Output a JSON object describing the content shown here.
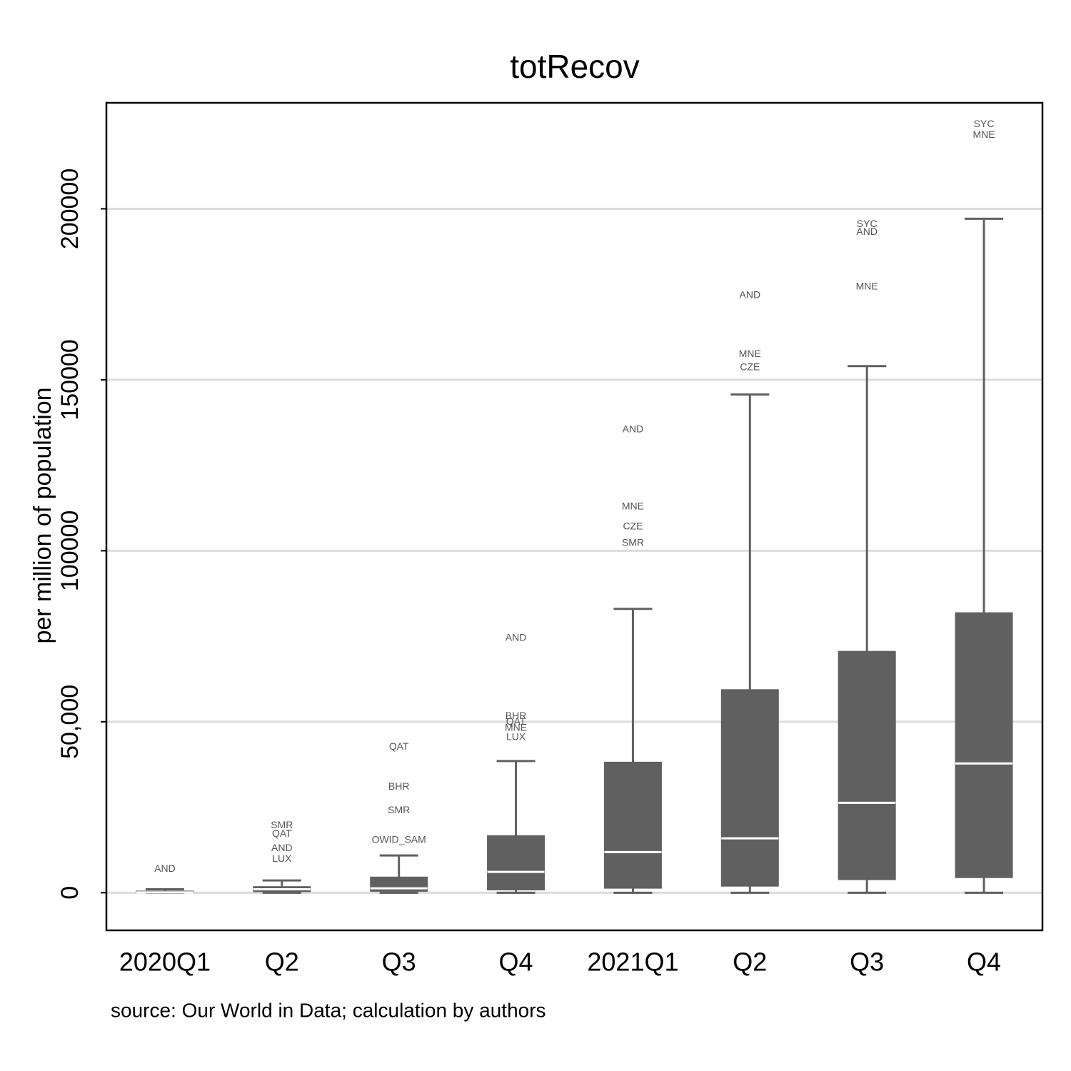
{
  "chart_data": {
    "type": "box",
    "title": "totRecov",
    "y_label": "per million of population",
    "source": "source: Our World in Data; calculation by authors",
    "categories": [
      "2020Q1",
      "Q2",
      "Q3",
      "Q4",
      "2021Q1",
      "Q2",
      "Q3",
      "Q4"
    ],
    "color": "#606060",
    "median_color": "#ffffff",
    "grid": true,
    "ylim": [
      -11000,
      231000
    ],
    "yticks": [
      0,
      {
        "value": 50000,
        "label": "50,000"
      },
      100000,
      150000,
      200000
    ],
    "boxes": [
      {
        "whisker_low": 0,
        "q1": 0,
        "median": 100,
        "q3": 500,
        "whisker_high": 1000,
        "outliers": [
          {
            "label": "AND",
            "value": 6900
          }
        ]
      },
      {
        "whisker_low": 0,
        "q1": 300,
        "median": 1000,
        "q3": 1800,
        "whisker_high": 3600,
        "outliers": [
          {
            "label": "SMR",
            "value": 19600
          },
          {
            "label": "QAT",
            "value": 17100
          },
          {
            "label": "AND",
            "value": 13000
          },
          {
            "label": "LUX",
            "value": 9800
          }
        ]
      },
      {
        "whisker_low": 0,
        "q1": 400,
        "median": 1300,
        "q3": 4600,
        "whisker_high": 10900,
        "outliers": [
          {
            "label": "QAT",
            "value": 42600
          },
          {
            "label": "BHR",
            "value": 30900
          },
          {
            "label": "SMR",
            "value": 24000
          },
          {
            "label": "OWID_SAM",
            "value": 15300
          }
        ]
      },
      {
        "whisker_low": 0,
        "q1": 800,
        "median": 6100,
        "q3": 16700,
        "whisker_high": 38500,
        "outliers": [
          {
            "label": "AND",
            "value": 74400
          },
          {
            "label": "BHR",
            "value": 51600
          },
          {
            "label": "QAT",
            "value": 49900
          },
          {
            "label": "MNE",
            "value": 48100
          },
          {
            "label": "LUX",
            "value": 45400
          }
        ]
      },
      {
        "whisker_low": 0,
        "q1": 1300,
        "median": 11900,
        "q3": 38200,
        "whisker_high": 83000,
        "outliers": [
          {
            "label": "AND",
            "value": 135400
          },
          {
            "label": "MNE",
            "value": 112900
          },
          {
            "label": "CZE",
            "value": 107000
          },
          {
            "label": "SMR",
            "value": 102200
          }
        ]
      },
      {
        "whisker_low": 0,
        "q1": 1900,
        "median": 15900,
        "q3": 59400,
        "whisker_high": 145700,
        "outliers": [
          {
            "label": "AND",
            "value": 174700
          },
          {
            "label": "MNE",
            "value": 157400
          },
          {
            "label": "CZE",
            "value": 153600
          }
        ]
      },
      {
        "whisker_low": 0,
        "q1": 3800,
        "median": 26300,
        "q3": 70600,
        "whisker_high": 154000,
        "outliers": [
          {
            "label": "SYC",
            "value": 195400
          },
          {
            "label": "AND",
            "value": 193100
          },
          {
            "label": "MNE",
            "value": 177200
          }
        ]
      },
      {
        "whisker_low": 0,
        "q1": 4400,
        "median": 37800,
        "q3": 81900,
        "whisker_high": 197100,
        "outliers": [
          {
            "label": "SYC",
            "value": 224700
          },
          {
            "label": "MNE",
            "value": 221500
          }
        ]
      }
    ]
  }
}
